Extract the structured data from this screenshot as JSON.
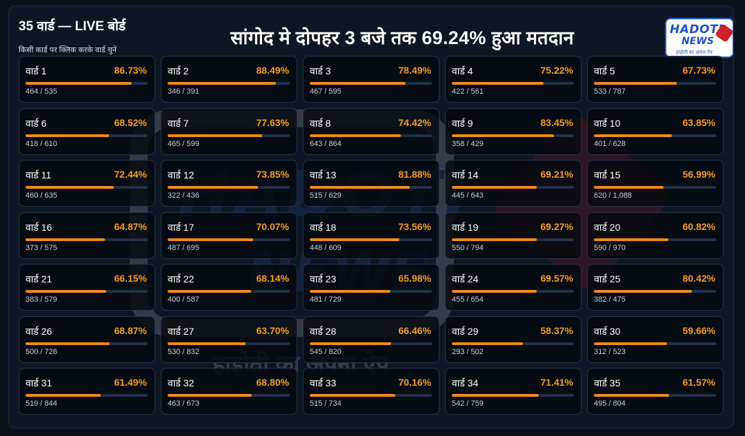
{
  "board": {
    "title": "35 वार्ड — LIVE बोर्ड",
    "hint": "किसी कार्ड पर क्लिक करके वार्ड चुनें",
    "headline": "सांगोद मे दोपहर 3 बजे तक 69.24% हुआ मतदान"
  },
  "logo": {
    "line1": "HADOTI",
    "line2": "NEWS",
    "tagline": "हाड़ोती का अपना ऐप"
  },
  "watermark": {
    "line1": "HADOTI",
    "line2": "NEWS",
    "tagline": "हाड़ोती का अपना ऐप"
  },
  "colors": {
    "accent": "#f28a12",
    "percent_text": "#f39c1f",
    "card_bg": "#060a10",
    "track": "#243044"
  },
  "wards": [
    {
      "name": "वार्ड 1",
      "pct": "86.73%",
      "count": "464 / 535",
      "fill": 0.8673
    },
    {
      "name": "वार्ड 2",
      "pct": "88.49%",
      "count": "346 / 391",
      "fill": 0.8849
    },
    {
      "name": "वार्ड 3",
      "pct": "78.49%",
      "count": "467 / 595",
      "fill": 0.7849
    },
    {
      "name": "वार्ड 4",
      "pct": "75.22%",
      "count": "422 / 561",
      "fill": 0.7522
    },
    {
      "name": "वार्ड 5",
      "pct": "67.73%",
      "count": "533 / 787",
      "fill": 0.6773
    },
    {
      "name": "वार्ड 6",
      "pct": "68.52%",
      "count": "418 / 610",
      "fill": 0.6852
    },
    {
      "name": "वार्ड 7",
      "pct": "77.63%",
      "count": "465 / 599",
      "fill": 0.7763
    },
    {
      "name": "वार्ड 8",
      "pct": "74.42%",
      "count": "643 / 864",
      "fill": 0.7442
    },
    {
      "name": "वार्ड 9",
      "pct": "83.45%",
      "count": "358 / 429",
      "fill": 0.8345
    },
    {
      "name": "वार्ड 10",
      "pct": "63.85%",
      "count": "401 / 628",
      "fill": 0.6385
    },
    {
      "name": "वार्ड 11",
      "pct": "72.44%",
      "count": "460 / 635",
      "fill": 0.7244
    },
    {
      "name": "वार्ड 12",
      "pct": "73.85%",
      "count": "322 / 436",
      "fill": 0.7385
    },
    {
      "name": "वार्ड 13",
      "pct": "81.88%",
      "count": "515 / 629",
      "fill": 0.8188
    },
    {
      "name": "वार्ड 14",
      "pct": "69.21%",
      "count": "445 / 643",
      "fill": 0.6921
    },
    {
      "name": "वार्ड 15",
      "pct": "56.99%",
      "count": "620 / 1,088",
      "fill": 0.5699
    },
    {
      "name": "वार्ड 16",
      "pct": "64.87%",
      "count": "373 / 575",
      "fill": 0.6487
    },
    {
      "name": "वार्ड 17",
      "pct": "70.07%",
      "count": "487 / 695",
      "fill": 0.7007
    },
    {
      "name": "वार्ड 18",
      "pct": "73.56%",
      "count": "448 / 609",
      "fill": 0.7356
    },
    {
      "name": "वार्ड 19",
      "pct": "69.27%",
      "count": "550 / 794",
      "fill": 0.6927
    },
    {
      "name": "वार्ड 20",
      "pct": "60.82%",
      "count": "590 / 970",
      "fill": 0.6082
    },
    {
      "name": "वार्ड 21",
      "pct": "66.15%",
      "count": "383 / 579",
      "fill": 0.6615
    },
    {
      "name": "वार्ड 22",
      "pct": "68.14%",
      "count": "400 / 587",
      "fill": 0.6814
    },
    {
      "name": "वार्ड 23",
      "pct": "65.98%",
      "count": "481 / 729",
      "fill": 0.6598
    },
    {
      "name": "वार्ड 24",
      "pct": "69.57%",
      "count": "455 / 654",
      "fill": 0.6957
    },
    {
      "name": "वार्ड 25",
      "pct": "80.42%",
      "count": "382 / 475",
      "fill": 0.8042
    },
    {
      "name": "वार्ड 26",
      "pct": "68.87%",
      "count": "500 / 726",
      "fill": 0.6887
    },
    {
      "name": "वार्ड 27",
      "pct": "63.70%",
      "count": "530 / 832",
      "fill": 0.637
    },
    {
      "name": "वार्ड 28",
      "pct": "66.46%",
      "count": "545 / 820",
      "fill": 0.6646
    },
    {
      "name": "वार्ड 29",
      "pct": "58.37%",
      "count": "293 / 502",
      "fill": 0.5837
    },
    {
      "name": "वार्ड 30",
      "pct": "59.66%",
      "count": "312 / 523",
      "fill": 0.5966
    },
    {
      "name": "वार्ड 31",
      "pct": "61.49%",
      "count": "519 / 844",
      "fill": 0.6149
    },
    {
      "name": "वार्ड 32",
      "pct": "68.80%",
      "count": "463 / 673",
      "fill": 0.688
    },
    {
      "name": "वार्ड 33",
      "pct": "70.16%",
      "count": "515 / 734",
      "fill": 0.7016
    },
    {
      "name": "वार्ड 34",
      "pct": "71.41%",
      "count": "542 / 759",
      "fill": 0.7141
    },
    {
      "name": "वार्ड 35",
      "pct": "61.57%",
      "count": "495 / 804",
      "fill": 0.6157
    }
  ]
}
